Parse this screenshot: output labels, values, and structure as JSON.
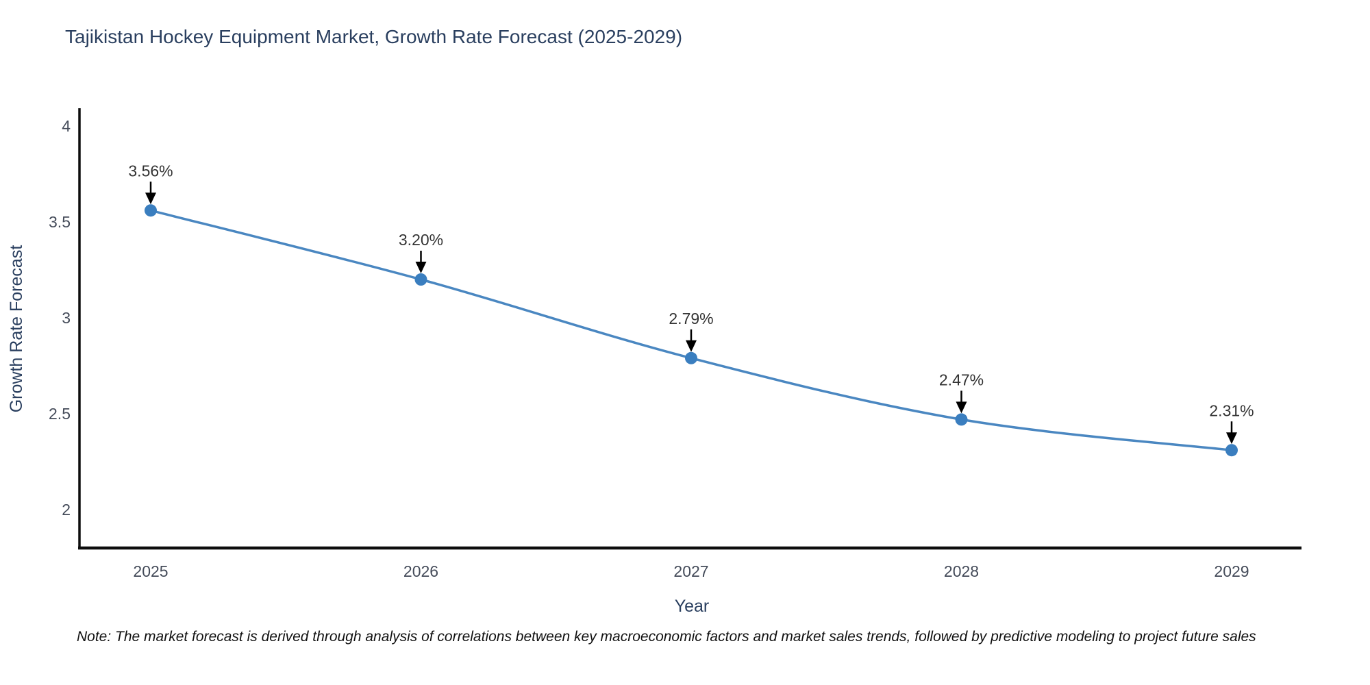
{
  "title": "Tajikistan Hockey Equipment Market, Growth Rate Forecast (2025-2029)",
  "note": "Note: The market forecast is derived through analysis of correlations between key macroeconomic factors and market sales trends, followed by predictive modeling to project future sales",
  "chart_data": {
    "type": "line",
    "title": "Tajikistan Hockey Equipment Market, Growth Rate Forecast (2025-2029)",
    "xlabel": "Year",
    "ylabel": "Growth Rate Forecast",
    "x": [
      2025,
      2026,
      2027,
      2028,
      2029
    ],
    "values": [
      3.56,
      3.2,
      2.79,
      2.47,
      2.31
    ],
    "point_labels": [
      "3.56%",
      "3.20%",
      "2.79%",
      "2.47%",
      "2.31%"
    ],
    "xtick_labels": [
      "2025",
      "2026",
      "2027",
      "2028",
      "2029"
    ],
    "yticks": [
      2,
      2.5,
      3,
      3.5,
      4
    ],
    "ytick_labels": [
      "2",
      "2.5",
      "3",
      "3.5",
      "4"
    ],
    "ylim": [
      1.8,
      4.09
    ],
    "line_shape": "spline",
    "grid": false,
    "legend": "none",
    "colors": {
      "line": "#4a87c1",
      "marker": "#3a7ebf",
      "annotation_arrow": "#000000",
      "annotation_text": "#333333",
      "axis_line": "#0d0d0d",
      "title_text": "#2a3f5f",
      "tick_text": "#444b59"
    }
  }
}
